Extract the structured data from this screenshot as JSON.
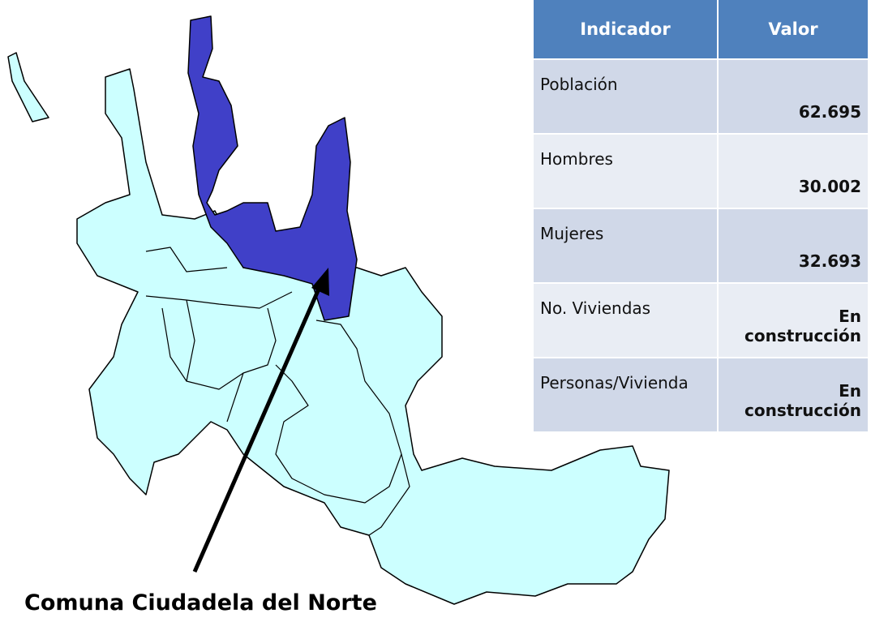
{
  "caption": "Comuna Ciudadela del Norte",
  "table": {
    "header": [
      "Indicador",
      "Valor"
    ],
    "rows": [
      [
        "Población",
        "62.695"
      ],
      [
        "Hombres",
        "30.002"
      ],
      [
        "Mujeres",
        "32.693"
      ],
      [
        "No. Viviendas",
        "En construcción"
      ],
      [
        "Personas/Vivienda",
        "En construcción"
      ]
    ]
  }
}
